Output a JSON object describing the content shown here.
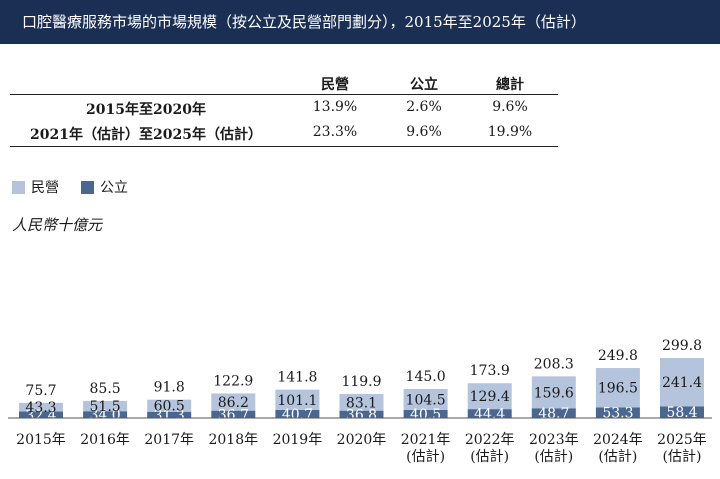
{
  "title": "口腔醫療服務市場的市場規模（按公立及民營部門劃分），2015年至2025年（估計）",
  "cagr_table": {
    "headers": [
      "民營",
      "公立",
      "總計"
    ],
    "rows": [
      {
        "label": "2015年至2020年",
        "values": [
          "13.9%",
          "2.6%",
          "9.6%"
        ]
      },
      {
        "label": "2021年（估計）至2025年（估計）",
        "values": [
          "23.3%",
          "9.6%",
          "19.9%"
        ]
      }
    ]
  },
  "colors": {
    "private": "#b4c4dc",
    "public": "#4a6790",
    "title_bg": "#1b2f55"
  },
  "chart_data": {
    "type": "bar",
    "stacked": true,
    "ylabel": "人民幣十億元",
    "categories": [
      "2015年",
      "2016年",
      "2017年",
      "2018年",
      "2019年",
      "2020年",
      "2021年\n(估計)",
      "2022年\n(估計)",
      "2023年\n(估計)",
      "2024年\n(估計)",
      "2025年\n(估計)"
    ],
    "series": [
      {
        "name": "公立",
        "values": [
          32.4,
          34.0,
          31.3,
          36.7,
          40.7,
          36.8,
          40.5,
          44.4,
          48.7,
          53.3,
          58.4
        ]
      },
      {
        "name": "民營",
        "values": [
          43.3,
          51.5,
          60.5,
          86.2,
          101.1,
          83.1,
          104.5,
          129.4,
          159.6,
          196.5,
          241.4
        ]
      }
    ],
    "totals": [
      75.7,
      85.5,
      91.8,
      122.9,
      141.8,
      119.9,
      145.0,
      173.9,
      208.3,
      249.8,
      299.8
    ],
    "legend": [
      "民營",
      "公立"
    ],
    "legend_position": "top-left",
    "grid": false
  }
}
